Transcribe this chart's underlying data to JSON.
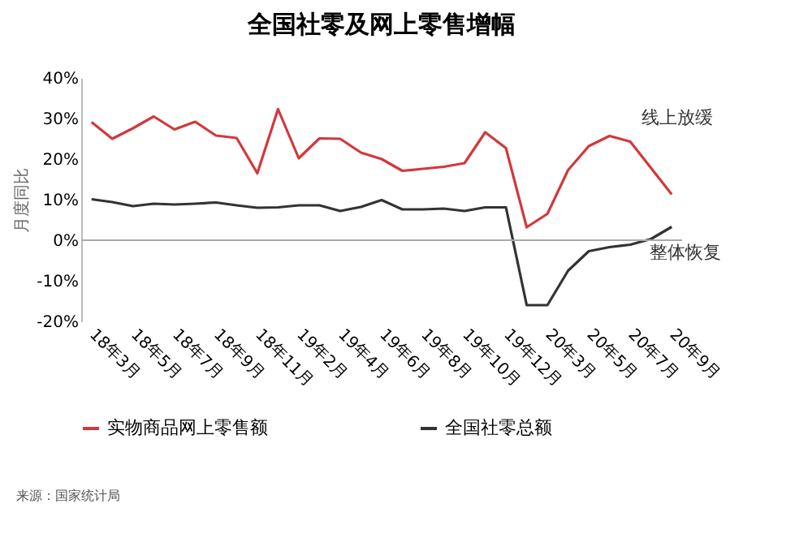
{
  "chart_data": {
    "type": "line",
    "title": "全国社零及网上零售增幅",
    "ylabel": "月度同比",
    "categories": [
      "18年3月",
      null,
      "18年5月",
      null,
      "18年7月",
      null,
      "18年9月",
      null,
      "18年11月",
      null,
      "19年2月",
      null,
      "19年4月",
      null,
      "19年6月",
      null,
      "19年8月",
      null,
      "19年10月",
      null,
      "19年12月",
      null,
      "20年3月",
      null,
      "20年5月",
      null,
      "20年7月",
      null,
      "20年9月"
    ],
    "series": [
      {
        "name": "实物商品网上零售额",
        "color": "#d2383c",
        "values": [
          29.1,
          25,
          27.6,
          30.5,
          27.3,
          29.2,
          25.8,
          25.2,
          16.5,
          32.3,
          20.2,
          25.1,
          25,
          21.6,
          20,
          17.1,
          17.6,
          18.1,
          19,
          26.6,
          22.7,
          3.2,
          6.5,
          17.3,
          23.2,
          25.7,
          24.3,
          17.8,
          11.3
        ]
      },
      {
        "name": "全国社零总额",
        "color": "#333333",
        "values": [
          10.1,
          9.4,
          8.4,
          9,
          8.8,
          9,
          9.3,
          8.6,
          8,
          8.1,
          8.6,
          8.6,
          7.2,
          8.2,
          9.9,
          7.6,
          7.6,
          7.8,
          7.2,
          8.1,
          8.1,
          -16,
          -16,
          -7.5,
          -2.7,
          -1.7,
          -1.1,
          0.3,
          3.3
        ]
      }
    ],
    "ylim": [
      -20,
      40
    ],
    "yticks": [
      {
        "value": -20,
        "label": "-20%"
      },
      {
        "value": -10,
        "label": "-10%"
      },
      {
        "value": 0,
        "label": "0%"
      },
      {
        "value": 10,
        "label": "10%"
      },
      {
        "value": 20,
        "label": "20%"
      },
      {
        "value": 30,
        "label": "30%"
      },
      {
        "value": 40,
        "label": "40%"
      }
    ],
    "ref_lines": [
      {
        "axis": "y",
        "value": 0,
        "color": "#aaaaaa"
      }
    ],
    "annotations": [
      "线上放缓",
      "整体恢复",
      "来源：国家统计局"
    ],
    "grid": false,
    "legend": "bottom",
    "marker": "none",
    "line_style": "solid"
  }
}
